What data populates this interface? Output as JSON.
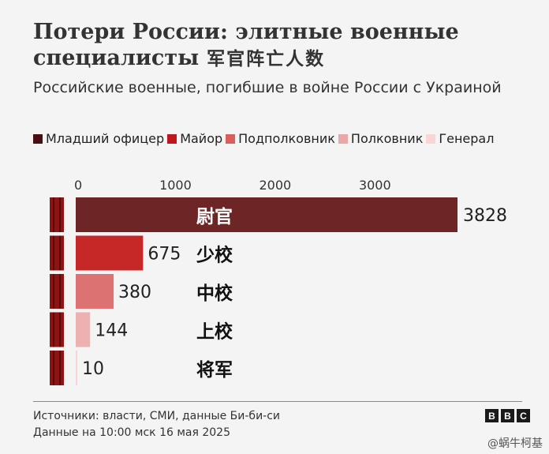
{
  "title": "Потери России: элитные военные специалисты",
  "title_cn": "军官阵亡人数",
  "subtitle": "Российские военные, погибшие в войне России с Украиной",
  "legend": [
    {
      "label": "Младший офицер",
      "color": "#4a0f12"
    },
    {
      "label": "Майор",
      "color": "#c0151d"
    },
    {
      "label": "Подполковник",
      "color": "#d95f5f"
    },
    {
      "label": "Полковник",
      "color": "#eba7a7"
    },
    {
      "label": "Генерал",
      "color": "#fad5d5"
    }
  ],
  "chart_data": {
    "type": "bar",
    "orientation": "horizontal",
    "categories": [
      "Младший офицер",
      "Майор",
      "Подполковник",
      "Полковник",
      "Генерал"
    ],
    "category_labels_cn": [
      "尉官",
      "少校",
      "中校",
      "上校",
      "将军"
    ],
    "values": [
      3828,
      675,
      380,
      144,
      10
    ],
    "colors": [
      "#6e2525",
      "#c62828",
      "#dd7272",
      "#eeb1b1",
      "#f7d3d3"
    ],
    "xlim": [
      0,
      3828
    ],
    "xticks": [
      0,
      1000,
      2000,
      3000
    ]
  },
  "footer": {
    "source": "Источники: власти, СМИ, данные Би-би-си",
    "date": "Данные на 10:00 мск 16 мая 2025",
    "logo": [
      "B",
      "B",
      "C"
    ]
  },
  "watermark": "@蜗牛柯基"
}
